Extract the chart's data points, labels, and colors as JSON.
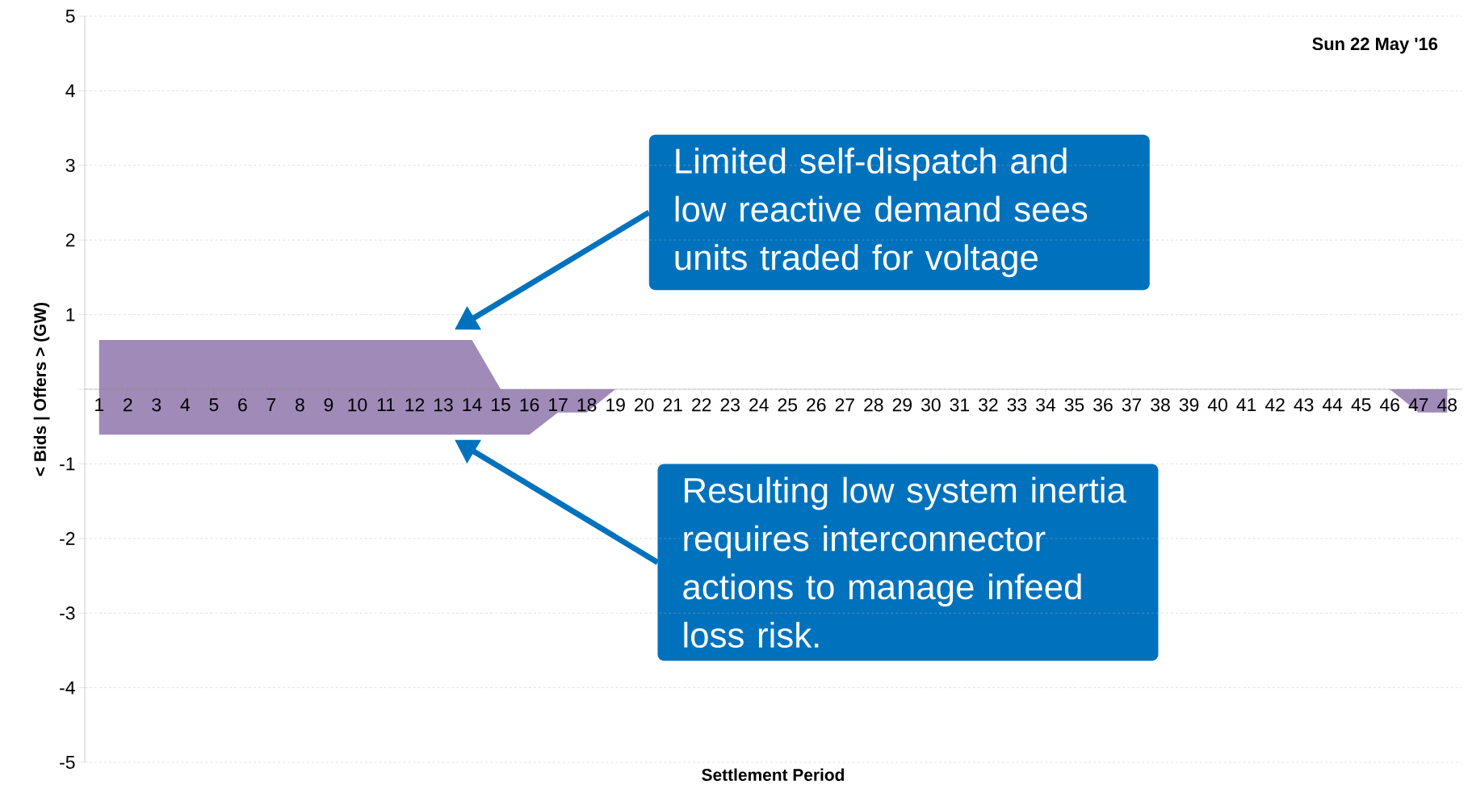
{
  "chart_data": {
    "type": "area",
    "xlabel": "Settlement Period",
    "ylabel": "< Bids | Offers > (GW)",
    "categories": [
      "1",
      "2",
      "3",
      "4",
      "5",
      "6",
      "7",
      "8",
      "9",
      "10",
      "11",
      "12",
      "13",
      "14",
      "15",
      "16",
      "17",
      "18",
      "19",
      "20",
      "21",
      "22",
      "23",
      "24",
      "25",
      "26",
      "27",
      "28",
      "29",
      "30",
      "31",
      "32",
      "33",
      "34",
      "35",
      "36",
      "37",
      "38",
      "39",
      "40",
      "41",
      "42",
      "43",
      "44",
      "45",
      "46",
      "47",
      "48"
    ],
    "series": [
      {
        "color": "#a08ab8",
        "values": [
          0.66,
          0.66,
          0.66,
          0.66,
          0.66,
          0.66,
          0.66,
          0.66,
          0.66,
          0.66,
          0.66,
          0.66,
          0.66,
          0.66,
          0,
          0,
          0,
          0,
          0,
          0,
          0,
          0,
          0,
          0,
          0,
          0,
          0,
          0,
          0,
          0,
          0,
          0,
          0,
          0,
          0,
          0,
          0,
          0,
          0,
          0,
          0,
          0,
          0,
          0,
          0,
          0,
          0,
          0
        ]
      },
      {
        "color": "#a08ab8",
        "values": [
          -0.61,
          -0.61,
          -0.61,
          -0.61,
          -0.61,
          -0.61,
          -0.61,
          -0.61,
          -0.61,
          -0.61,
          -0.61,
          -0.61,
          -0.61,
          -0.61,
          -0.61,
          -0.61,
          -0.31,
          -0.31,
          0,
          0,
          0,
          0,
          0,
          0,
          0,
          0,
          0,
          0,
          0,
          0,
          0,
          0,
          0,
          0,
          0,
          0,
          0,
          0,
          0,
          0,
          0,
          0,
          0,
          0,
          0,
          0,
          -0.31,
          -0.31
        ]
      }
    ],
    "ylim": [
      -5,
      5
    ],
    "yticks": [
      -5,
      -4,
      -3,
      -2,
      -1,
      {
        "value": 0,
        "label": null
      },
      1,
      2,
      3,
      4,
      5
    ],
    "grid": "y",
    "annotations": [
      "Sun 22 May '16",
      "Limited self-dispatch and low reactive demand sees units traded for voltage",
      "Resulting low system inertia requires interconnector actions to manage infeed loss risk."
    ]
  }
}
